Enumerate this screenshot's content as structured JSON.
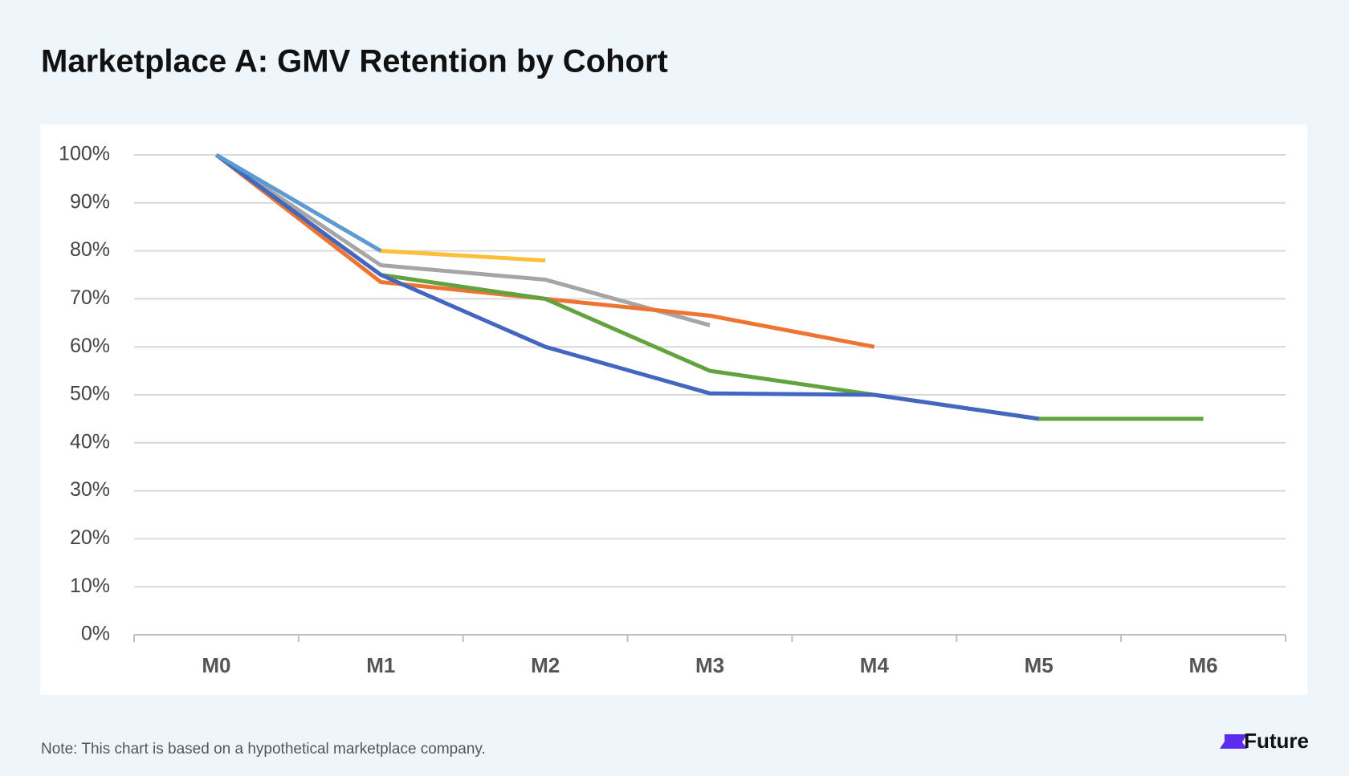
{
  "chart_data": {
    "type": "line",
    "title": "Marketplace A: GMV Retention by Cohort",
    "categories": [
      "M0",
      "M1",
      "M2",
      "M3",
      "M4",
      "M5",
      "M6"
    ],
    "series": [
      {
        "color": "#fbbf3a",
        "values": [
          100,
          80,
          78,
          null,
          null,
          null,
          null
        ]
      },
      {
        "color": "#a5a5a5",
        "values": [
          100,
          77,
          74,
          64.5,
          null,
          null,
          null
        ]
      },
      {
        "color": "#ed7433",
        "values": [
          100,
          73.5,
          70,
          66.5,
          60,
          null,
          null
        ]
      },
      {
        "color": "#63a33f",
        "values": [
          100,
          75,
          70,
          55,
          50,
          45,
          45
        ]
      },
      {
        "color": "#4367c1",
        "values": [
          100,
          75,
          60,
          50.3,
          50,
          45,
          null
        ]
      },
      {
        "color": "#5b9bd5",
        "values": [
          100,
          80,
          null,
          null,
          null,
          null,
          null
        ]
      }
    ],
    "ylim": [
      0,
      100
    ],
    "yticks": [
      {
        "value": 0,
        "label": "0%"
      },
      {
        "value": 10,
        "label": "10%"
      },
      {
        "value": 20,
        "label": "20%"
      },
      {
        "value": 30,
        "label": "30%"
      },
      {
        "value": 40,
        "label": "40%"
      },
      {
        "value": 50,
        "label": "50%"
      },
      {
        "value": 60,
        "label": "60%"
      },
      {
        "value": 70,
        "label": "70%"
      },
      {
        "value": 80,
        "label": "80%"
      },
      {
        "value": 90,
        "label": "90%"
      },
      {
        "value": 100,
        "label": "100%"
      }
    ],
    "grid": true
  },
  "footer": {
    "note": "Note: This chart is based on a hypothetical marketplace company.",
    "brand": "Future"
  }
}
